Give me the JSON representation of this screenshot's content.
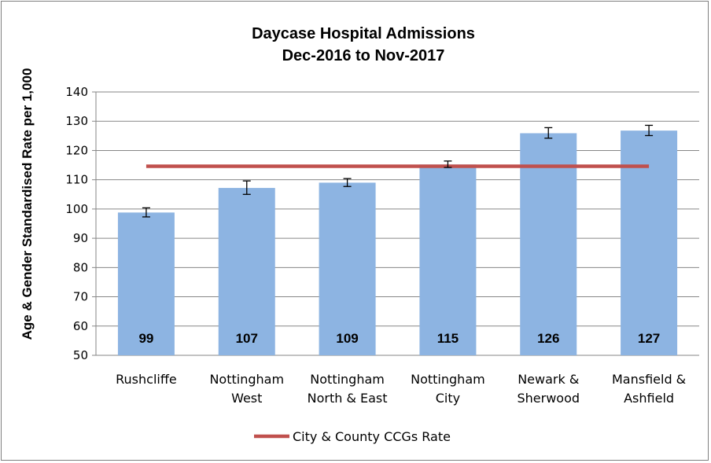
{
  "chart_data": {
    "type": "bar",
    "title": [
      "Daycase Hospital Admissions",
      "Dec-2016 to Nov-2017"
    ],
    "ylabel": "Age & Gender Standardised Rate per 1,000",
    "xlabel": "",
    "ylim": [
      50,
      140
    ],
    "yticks": [
      50,
      60,
      70,
      80,
      90,
      100,
      110,
      120,
      130,
      140
    ],
    "ytick_labels": [
      "50",
      "60",
      "70",
      "80",
      "90",
      "100",
      "110",
      "120",
      "130",
      "140"
    ],
    "grid": true,
    "categories": [
      [
        "Rushcliffe"
      ],
      [
        "Nottingham",
        "West"
      ],
      [
        "Nottingham",
        "North & East"
      ],
      [
        "Nottingham",
        "City"
      ],
      [
        "Newark &",
        "Sherwood"
      ],
      [
        "Mansfield &",
        "Ashfield"
      ]
    ],
    "series": [
      {
        "type": "bar",
        "values": [
          98.8,
          107.2,
          109.0,
          115.2,
          125.9,
          126.8
        ],
        "data_labels": [
          "99",
          "107",
          "109",
          "115",
          "126",
          "127"
        ],
        "error_low": [
          97.3,
          105.0,
          107.7,
          114.2,
          124.2,
          125.1
        ],
        "error_high": [
          100.4,
          109.6,
          110.4,
          116.4,
          127.8,
          128.6
        ],
        "color": "#8db4e2"
      },
      {
        "type": "line",
        "name": "City & County CCGs Rate",
        "value": 114.6,
        "color": "#c0504d"
      }
    ],
    "legend": {
      "position": "bottom",
      "label": "City & County CCGs Rate"
    }
  }
}
